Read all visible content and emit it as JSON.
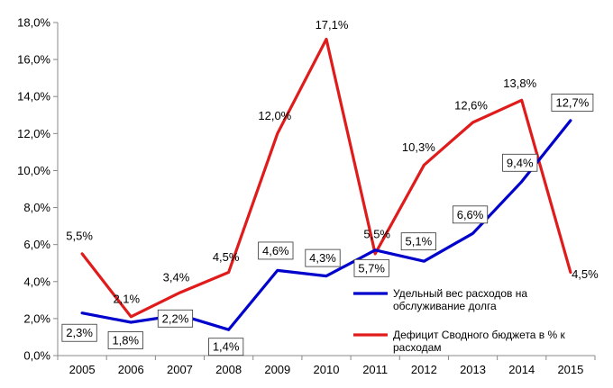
{
  "chart_data": {
    "type": "line",
    "categories": [
      "2005",
      "2006",
      "2007",
      "2008",
      "2009",
      "2010",
      "2011",
      "2012",
      "2013",
      "2014",
      "2015"
    ],
    "ylim": [
      0,
      18
    ],
    "ystep": 2,
    "y_tick_labels": [
      "0,0%",
      "2,0%",
      "4,0%",
      "6,0%",
      "8,0%",
      "10,0%",
      "12,0%",
      "14,0%",
      "16,0%",
      "18,0%"
    ],
    "grid": false,
    "legend_position": "bottom-right",
    "series": [
      {
        "name": "Удельный вес расходов на обслуживание долга",
        "color": "#0000cc",
        "values": [
          2.3,
          1.8,
          2.2,
          1.4,
          4.6,
          4.3,
          5.7,
          5.1,
          6.6,
          9.4,
          12.7
        ],
        "labels": [
          "2,3%",
          "1,8%",
          "2,2%",
          "1,4%",
          "4,6%",
          "4,3%",
          "5,7%",
          "5,1%",
          "6,6%",
          "9,4%",
          "12,7%"
        ],
        "label_style": "boxed"
      },
      {
        "name": "Дефицит Сводного бюджета в % к расходам",
        "color": "#e01b1b",
        "values": [
          5.5,
          2.1,
          3.4,
          4.5,
          12.0,
          17.1,
          5.5,
          10.3,
          12.6,
          13.8,
          4.5
        ],
        "labels": [
          "5,5%",
          "2,1%",
          "3,4%",
          "4,5%",
          "12,0%",
          "17,1%",
          "5,5%",
          "10,3%",
          "12,6%",
          "13,8%",
          "4,5%"
        ],
        "label_style": "plain"
      }
    ],
    "legend": [
      {
        "line1": "Удельный вес расходов на",
        "line2": "обслуживание долга"
      },
      {
        "line1": "Дефицит Сводного бюджета в % к",
        "line2": "расходам"
      }
    ]
  }
}
